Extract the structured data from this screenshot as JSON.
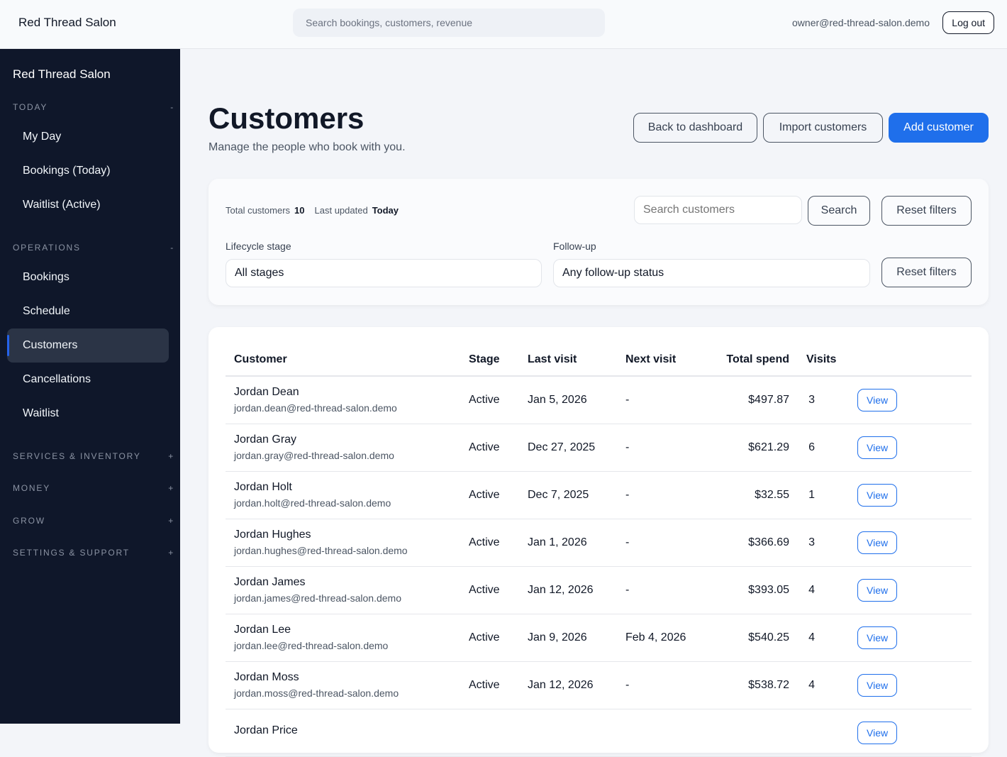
{
  "header": {
    "brand": "Red Thread Salon",
    "search_placeholder": "Search bookings, customers, revenue",
    "user_email": "owner@red-thread-salon.demo",
    "logout": "Log out"
  },
  "sidebar": {
    "brand": "Red Thread Salon",
    "sections": [
      {
        "label": "TODAY",
        "toggle": "-",
        "items": [
          "My Day",
          "Bookings (Today)",
          "Waitlist (Active)"
        ]
      },
      {
        "label": "OPERATIONS",
        "toggle": "-",
        "items": [
          "Bookings",
          "Schedule",
          "Customers",
          "Cancellations",
          "Waitlist"
        ]
      },
      {
        "label": "SERVICES & INVENTORY",
        "toggle": "+"
      },
      {
        "label": "MONEY",
        "toggle": "+"
      },
      {
        "label": "GROW",
        "toggle": "+"
      },
      {
        "label": "SETTINGS & SUPPORT",
        "toggle": "+"
      }
    ],
    "active_item": "Customers"
  },
  "page": {
    "title": "Customers",
    "subtitle": "Manage the people who book with you.",
    "back": "Back to dashboard",
    "import": "Import customers",
    "add": "Add customer",
    "accent": "#1f6feb"
  },
  "filters": {
    "total_label": "Total customers",
    "total_value": "10",
    "updated_label": "Last updated",
    "updated_value": "Today",
    "search_placeholder": "Search customers",
    "search_button": "Search",
    "reset": "Reset filters",
    "stage_label": "Lifecycle stage",
    "stage_value": "All stages",
    "followup_label": "Follow-up",
    "followup_value": "Any follow-up status"
  },
  "table": {
    "headers": [
      "Customer",
      "Stage",
      "Last visit",
      "Next visit",
      "Total spend",
      "Visits"
    ],
    "view_label": "View",
    "rows": [
      {
        "name": "Jordan Dean",
        "email": "jordan.dean@red-thread-salon.demo",
        "stage": "Active",
        "last": "Jan 5, 2026",
        "next": "-",
        "spend": "$497.87",
        "visits": "3"
      },
      {
        "name": "Jordan Gray",
        "email": "jordan.gray@red-thread-salon.demo",
        "stage": "Active",
        "last": "Dec 27, 2025",
        "next": "-",
        "spend": "$621.29",
        "visits": "6"
      },
      {
        "name": "Jordan Holt",
        "email": "jordan.holt@red-thread-salon.demo",
        "stage": "Active",
        "last": "Dec 7, 2025",
        "next": "-",
        "spend": "$32.55",
        "visits": "1"
      },
      {
        "name": "Jordan Hughes",
        "email": "jordan.hughes@red-thread-salon.demo",
        "stage": "Active",
        "last": "Jan 1, 2026",
        "next": "-",
        "spend": "$366.69",
        "visits": "3"
      },
      {
        "name": "Jordan James",
        "email": "jordan.james@red-thread-salon.demo",
        "stage": "Active",
        "last": "Jan 12, 2026",
        "next": "-",
        "spend": "$393.05",
        "visits": "4"
      },
      {
        "name": "Jordan Lee",
        "email": "jordan.lee@red-thread-salon.demo",
        "stage": "Active",
        "last": "Jan 9, 2026",
        "next": "Feb 4, 2026",
        "spend": "$540.25",
        "visits": "4"
      },
      {
        "name": "Jordan Moss",
        "email": "jordan.moss@red-thread-salon.demo",
        "stage": "Active",
        "last": "Jan 12, 2026",
        "next": "-",
        "spend": "$538.72",
        "visits": "4"
      },
      {
        "name": "Jordan Price"
      }
    ]
  }
}
